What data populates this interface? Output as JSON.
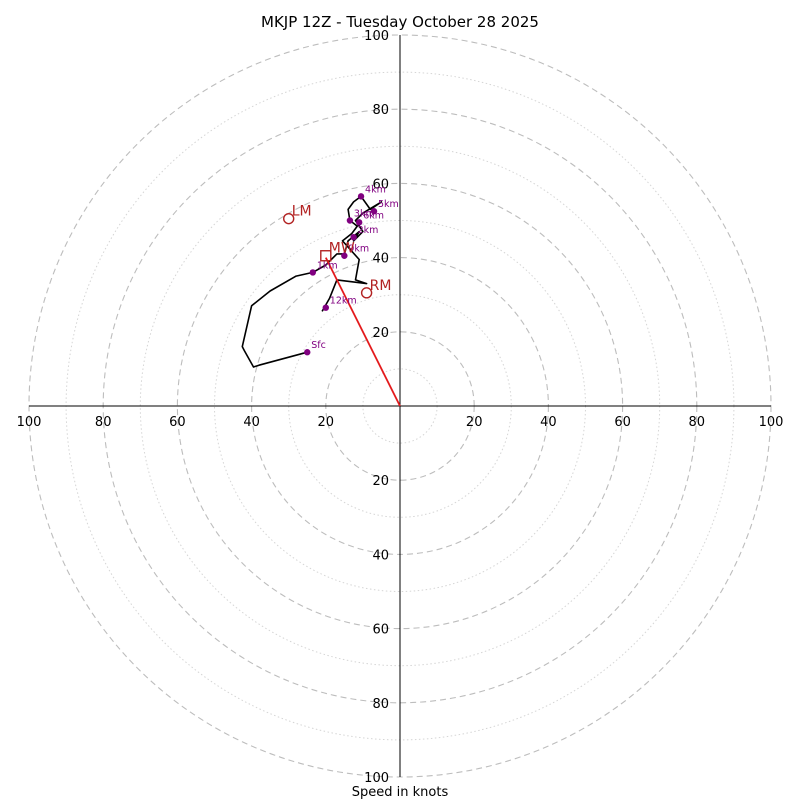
{
  "chart_data": {
    "type": "hodograph",
    "title": "MKJP 12Z - Tuesday October 28 2025",
    "xlabel": "Speed in knots",
    "range": 100,
    "rings_major": [
      20,
      40,
      60,
      80,
      100
    ],
    "rings_minor": [
      10,
      30,
      50,
      70,
      90
    ],
    "ticks_right": [
      "20",
      "40",
      "60",
      "80",
      "100"
    ],
    "ticks_left": [
      "20",
      "40",
      "60",
      "80",
      "100"
    ],
    "ticks_up": [
      "20",
      "40",
      "60",
      "80",
      "100"
    ],
    "ticks_down": [
      "20",
      "40",
      "60",
      "80",
      "100"
    ],
    "trace": [
      [
        -25,
        14.5
      ],
      [
        -38,
        11
      ],
      [
        -39.5,
        10.5
      ],
      [
        -42,
        15
      ],
      [
        -42.5,
        16
      ],
      [
        -40,
        27
      ],
      [
        -35,
        31
      ],
      [
        -28,
        35
      ],
      [
        -23.5,
        36
      ],
      [
        -20,
        38
      ],
      [
        -17,
        41
      ],
      [
        -15,
        41
      ],
      [
        -14,
        44.5
      ],
      [
        -11,
        47
      ],
      [
        -12.5,
        44.5
      ],
      [
        -10,
        47
      ],
      [
        -12,
        50
      ],
      [
        -10,
        52
      ],
      [
        -5,
        55
      ],
      [
        -8,
        53
      ],
      [
        -10.5,
        56.5
      ],
      [
        -12.5,
        55
      ],
      [
        -14,
        53
      ],
      [
        -13.5,
        50
      ],
      [
        -11.5,
        48.5
      ],
      [
        -13,
        46.5
      ],
      [
        -15.5,
        44.5
      ],
      [
        -11,
        39.5
      ],
      [
        -12,
        34
      ],
      [
        -9,
        33
      ],
      [
        -17,
        34
      ],
      [
        -19,
        29
      ],
      [
        -21,
        25.5
      ]
    ],
    "points": [
      {
        "label": "Sfc",
        "x": -25,
        "y": 14.5
      },
      {
        "label": "1km",
        "x": -23.5,
        "y": 36
      },
      {
        "label": "2km",
        "x": -12.5,
        "y": 45.5
      },
      {
        "label": "3km",
        "x": -13.5,
        "y": 50
      },
      {
        "label": "4km",
        "x": -10.5,
        "y": 56.5
      },
      {
        "label": "5km",
        "x": -7,
        "y": 52.5
      },
      {
        "label": "6km",
        "x": -11,
        "y": 49.5
      },
      {
        "label": "9km",
        "x": -15,
        "y": 40.5
      },
      {
        "label": "12km",
        "x": -20,
        "y": 26.5
      }
    ],
    "markers": [
      {
        "label": "LM",
        "x": -30,
        "y": 50.5,
        "shape": "circle"
      },
      {
        "label": "RM",
        "x": -9,
        "y": 30.5,
        "shape": "circle"
      },
      {
        "label": "MW",
        "x": -20,
        "y": 40.5,
        "shape": "square"
      }
    ],
    "storm_vector": {
      "from": [
        0,
        0
      ],
      "to": [
        -20,
        40
      ]
    },
    "colors": {
      "trace": "#000000",
      "points": "#800080",
      "markers": "#b22222",
      "vector": "#e41a1c",
      "rings_major": "#bdbdbd",
      "rings_minor": "#d5d5d5",
      "axes": "#000000"
    }
  }
}
